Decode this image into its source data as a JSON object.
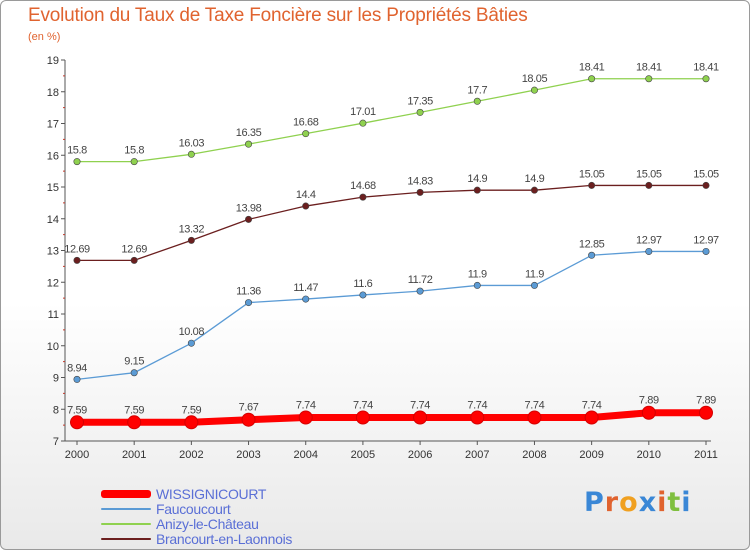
{
  "header": {
    "title": "Evolution du Taux de Taxe Foncière sur les Propriétés Bâties",
    "subtitle": "(en %)"
  },
  "brand": {
    "logo_letters": [
      "P",
      "r",
      "o",
      "x",
      "i",
      "t",
      "i"
    ],
    "logo_colors": [
      "#3a87d6",
      "#e0632f",
      "#f0a020",
      "#3a87d6",
      "#e0632f",
      "#7fbf3f",
      "#3a87d6"
    ]
  },
  "chart_data": {
    "type": "line",
    "x": [
      "2000",
      "2001",
      "2002",
      "2003",
      "2004",
      "2005",
      "2006",
      "2007",
      "2008",
      "2009",
      "2010",
      "2011"
    ],
    "ylim": [
      7,
      19
    ],
    "yticks": [
      "7",
      "8",
      "9",
      "10",
      "11",
      "12",
      "13",
      "14",
      "15",
      "16",
      "17",
      "18",
      "19"
    ],
    "grid": false,
    "legend_position": "bottom-left",
    "series": [
      {
        "name": "WISSIGNICOURT",
        "color": "#ff0000",
        "emphasis": true,
        "values": [
          7.59,
          7.59,
          7.59,
          7.67,
          7.74,
          7.74,
          7.74,
          7.74,
          7.74,
          7.74,
          7.89,
          7.89
        ],
        "labels": [
          "7.59",
          "7.59",
          "7.59",
          "7.67",
          "7.74",
          "7.74",
          "7.74",
          "7.74",
          "7.74",
          "7.74",
          "7.89",
          "7.89"
        ]
      },
      {
        "name": "Faucoucourt",
        "color": "#5b9bd5",
        "emphasis": false,
        "values": [
          8.94,
          9.15,
          10.08,
          11.36,
          11.47,
          11.6,
          11.72,
          11.9,
          11.9,
          12.85,
          12.97,
          12.97
        ],
        "labels": [
          "8.94",
          "9.15",
          "10.08",
          "11.36",
          "11.47",
          "11.6",
          "11.72",
          "11.9",
          "11.9",
          "12.85",
          "12.97",
          "12.97"
        ]
      },
      {
        "name": "Anizy-le-Château",
        "color": "#8fd14f",
        "emphasis": false,
        "values": [
          15.8,
          15.8,
          16.03,
          16.35,
          16.68,
          17.01,
          17.35,
          17.7,
          18.05,
          18.41,
          18.41,
          18.41
        ],
        "labels": [
          "15.8",
          "15.8",
          "16.03",
          "16.35",
          "16.68",
          "17.01",
          "17.35",
          "17.7",
          "18.05",
          "18.41",
          "18.41",
          "18.41"
        ]
      },
      {
        "name": "Brancourt-en-Laonnois",
        "color": "#6b1f1f",
        "emphasis": false,
        "values": [
          12.69,
          12.69,
          13.32,
          13.98,
          14.4,
          14.68,
          14.83,
          14.9,
          14.9,
          15.05,
          15.05,
          15.05
        ],
        "labels": [
          "12.69",
          "12.69",
          "13.32",
          "13.98",
          "14.4",
          "14.68",
          "14.83",
          "14.9",
          "14.9",
          "15.05",
          "15.05",
          "15.05"
        ]
      }
    ]
  }
}
